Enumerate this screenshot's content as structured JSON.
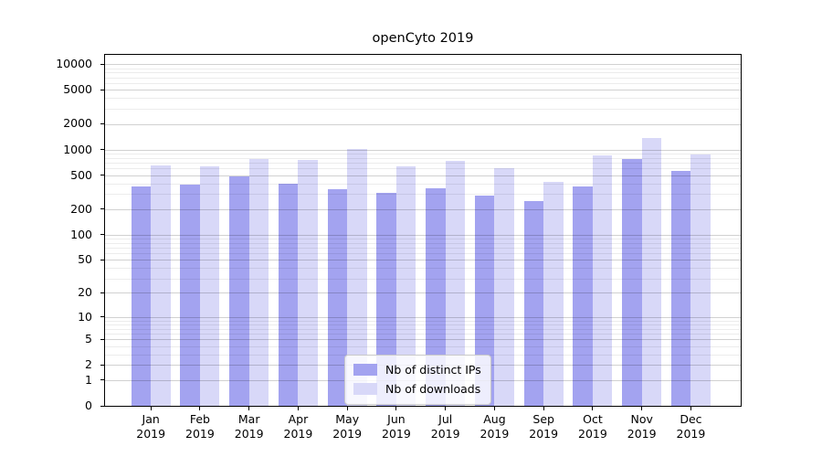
{
  "page": {
    "background": "#ffffff"
  },
  "chart_data": {
    "type": "bar",
    "title": "openCyto 2019",
    "categories": [
      "Jan",
      "Feb",
      "Mar",
      "Apr",
      "May",
      "Jun",
      "Jul",
      "Aug",
      "Sep",
      "Oct",
      "Nov",
      "Dec"
    ],
    "year_label": "2019",
    "series": [
      {
        "name": "Nb of distinct IPs",
        "color": "#a3a3f0",
        "values": [
          370,
          385,
          480,
          395,
          345,
          310,
          350,
          290,
          250,
          370,
          770,
          560
        ]
      },
      {
        "name": "Nb of downloads",
        "color": "#d8d8f8",
        "values": [
          650,
          635,
          770,
          755,
          1010,
          635,
          735,
          605,
          420,
          850,
          1360,
          870
        ]
      }
    ],
    "y_axis": {
      "scale": "log10(1+value)",
      "ticks": [
        0,
        1,
        2,
        5,
        10,
        20,
        50,
        100,
        200,
        500,
        1000,
        2000,
        5000,
        10000
      ],
      "minor_ticks": [
        3,
        4,
        6,
        7,
        8,
        9,
        30,
        40,
        60,
        70,
        80,
        90,
        300,
        400,
        600,
        700,
        800,
        900,
        3000,
        4000,
        6000,
        7000,
        8000,
        9000
      ],
      "top_value": 12850
    },
    "grid": true,
    "legend_position": "bottom-center",
    "colors": {
      "axis": "#000000",
      "major_grid": "rgba(0,0,0,0.18)",
      "minor_grid": "rgba(0,0,0,0.075)"
    }
  }
}
